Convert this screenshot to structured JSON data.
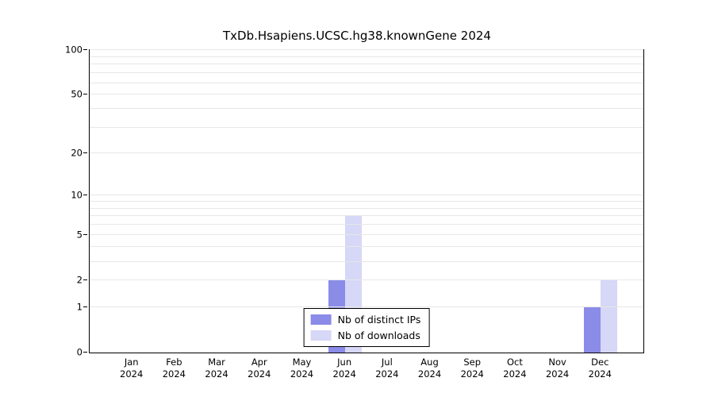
{
  "title": "TxDb.Hsapiens.UCSC.hg38.knownGene 2024",
  "chart_data": {
    "type": "bar",
    "title": "TxDb.Hsapiens.UCSC.hg38.knownGene 2024",
    "categories": [
      "Jan",
      "Feb",
      "Mar",
      "Apr",
      "May",
      "Jun",
      "Jul",
      "Aug",
      "Sep",
      "Oct",
      "Nov",
      "Dec"
    ],
    "category_year": "2024",
    "series": [
      {
        "name": "Nb of distinct IPs",
        "color": "#8b8be8",
        "values": [
          0,
          0,
          0,
          0,
          0,
          2,
          0,
          0,
          0,
          0,
          0,
          1
        ]
      },
      {
        "name": "Nb of downloads",
        "color": "#d7d7f8",
        "values": [
          0,
          0,
          0,
          0,
          0,
          7,
          0,
          0,
          0,
          0,
          0,
          2
        ]
      }
    ],
    "y_ticks": [
      0,
      1,
      2,
      5,
      10,
      20,
      50,
      100
    ],
    "grid_values": [
      1,
      2,
      3,
      4,
      5,
      6,
      7,
      8,
      9,
      10,
      20,
      30,
      40,
      50,
      60,
      70,
      80,
      90,
      100
    ],
    "scale": "log10(v+1)",
    "ylim": [
      0,
      100
    ],
    "grid_color": "#e7e7e7",
    "legend_position": "bottom-center-inside"
  }
}
